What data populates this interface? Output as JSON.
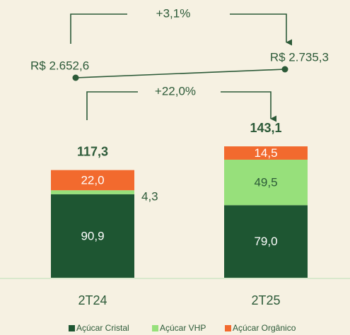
{
  "chart_data": {
    "type": "stacked_bar",
    "categories": [
      "2T24",
      "2T25"
    ],
    "series": [
      {
        "name": "Açúcar Cristal",
        "color": "#1e5632",
        "values": [
          90.9,
          79.0
        ],
        "value_labels": [
          "90,9",
          "79,0"
        ]
      },
      {
        "name": "Açúcar VHP",
        "color": "#97e07b",
        "values": [
          4.3,
          49.5
        ],
        "value_labels": [
          "4,3",
          "49,5"
        ]
      },
      {
        "name": "Açúcar Orgânico",
        "color": "#f26a2e",
        "values": [
          22.0,
          14.5
        ],
        "value_labels": [
          "22,0",
          "14,5"
        ]
      }
    ],
    "totals": {
      "values": [
        117.3,
        143.1
      ],
      "value_labels": [
        "117,3",
        "143,1"
      ]
    },
    "totals_growth": {
      "value": 22.0,
      "label": "+22,0%"
    },
    "revenue": {
      "values": [
        2652.6,
        2735.3
      ],
      "value_labels": [
        "R$ 2.652,6",
        "R$ 2.735,3"
      ]
    },
    "revenue_growth": {
      "value": 3.1,
      "label": "+3,1%"
    }
  }
}
